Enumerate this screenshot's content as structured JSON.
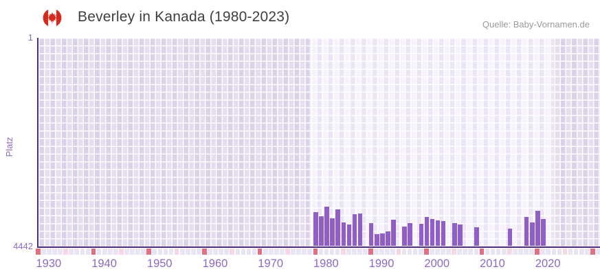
{
  "header": {
    "title": "Beverley in Kanada (1980-2023)",
    "source": "Quelle: Baby-Vornamen.de",
    "flag_icon": "canada-flag"
  },
  "axes": {
    "y_label": "Platz",
    "y_top_tick": "1",
    "y_bottom_tick": "4442"
  },
  "chart_data": {
    "type": "bar",
    "title": "Beverley in Kanada (1980-2023)",
    "xlabel": "",
    "ylabel": "Platz",
    "y_axis": {
      "top": 1,
      "bottom": 4442,
      "inverted": true
    },
    "x_axis": {
      "start_year": 1930,
      "end_year": 2030,
      "tick_years": [
        1930,
        1940,
        1950,
        1960,
        1970,
        1980,
        1990,
        2000,
        2010,
        2020
      ]
    },
    "highlight_years": [
      1980,
      2023
    ],
    "legend": false,
    "series": [
      {
        "name": "Platz",
        "years": [
          1980,
          1981,
          1982,
          1983,
          1984,
          1985,
          1986,
          1987,
          1988,
          1990,
          1991,
          1992,
          1993,
          1994,
          1996,
          1997,
          1999,
          2000,
          2001,
          2002,
          2003,
          2005,
          2006,
          2009,
          2015,
          2018,
          2019,
          2020,
          2021
        ],
        "ranks": [
          3725,
          3800,
          3595,
          3850,
          3655,
          3930,
          3975,
          3765,
          3740,
          3945,
          4190,
          4165,
          4125,
          3885,
          4030,
          3955,
          3970,
          3825,
          3860,
          3900,
          3905,
          3955,
          3980,
          4040,
          4070,
          3825,
          3930,
          3690,
          3860
        ]
      }
    ],
    "decade_marker_years": [
      1930,
      1940,
      1950,
      1960,
      1970,
      1980,
      1990,
      2000,
      2010,
      2020,
      2030
    ],
    "half_decade_marker_years": [
      1935,
      1945,
      1955,
      1965,
      1975,
      1985,
      1995,
      2005,
      2015,
      2025
    ]
  },
  "colors": {
    "bar": "#8f5fc6",
    "axis_line": "#4e2b85",
    "label_purple": "#8d6ac1",
    "title_text": "#3f3f3f",
    "source_text": "#9b9b9b",
    "flag_red": "#d52b1e",
    "bg_col_dark": "#dad3e8",
    "bg_col_light": "#e4deef",
    "band_col_dark": "#ebe5f6",
    "band_col_light": "#f6f3fb",
    "strip_cell": "#eae5f4",
    "marker_decade": "#e0717f",
    "marker_half_decade": "#f6d8e3"
  }
}
